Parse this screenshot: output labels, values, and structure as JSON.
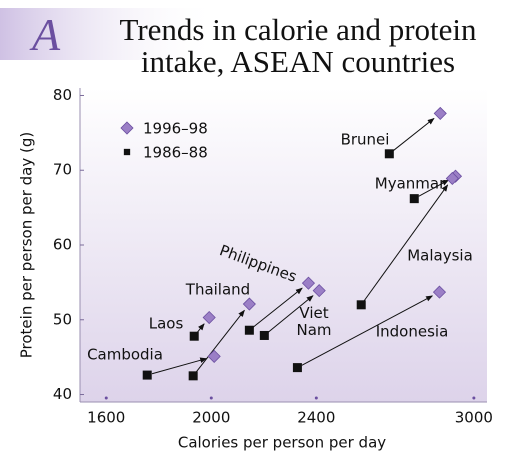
{
  "chart_data": {
    "type": "scatter",
    "panel_label": "A",
    "title": "Trends in calorie and protein intake, ASEAN countries",
    "x_label": "Calories per person per day",
    "y_label": "Protein per person per day (g)",
    "categories": [
      "Brunei",
      "Myanmar",
      "Malaysia",
      "Indonesia",
      "Viet Nam",
      "Philippines",
      "Thailand",
      "Laos",
      "Cambodia"
    ],
    "series": [
      {
        "name": "1996–98",
        "color": "#9b7fc6",
        "marker": "diamond",
        "x": [
          2872,
          2930,
          2918,
          2869,
          2411,
          2370,
          2145,
          1992,
          2011
        ],
        "values": [
          77.6,
          69.2,
          68.9,
          53.7,
          53.9,
          54.9,
          52.1,
          50.3,
          45.1
        ]
      },
      {
        "name": "1986–88",
        "color": "#111111",
        "marker": "square",
        "x": [
          2678,
          2773,
          2571,
          2328,
          2202,
          2145,
          1931,
          1935,
          1756
        ],
        "values": [
          72.2,
          66.2,
          52.0,
          43.6,
          47.9,
          48.6,
          42.5,
          47.8,
          42.6
        ]
      }
    ],
    "xlim": [
      1500,
      3050
    ],
    "xticks": [
      1600,
      2000,
      2400,
      3000
    ],
    "ylim": [
      39,
      81
    ],
    "yticks": [
      40,
      50,
      60,
      70,
      80
    ],
    "legend": "upper left",
    "grid": false
  }
}
